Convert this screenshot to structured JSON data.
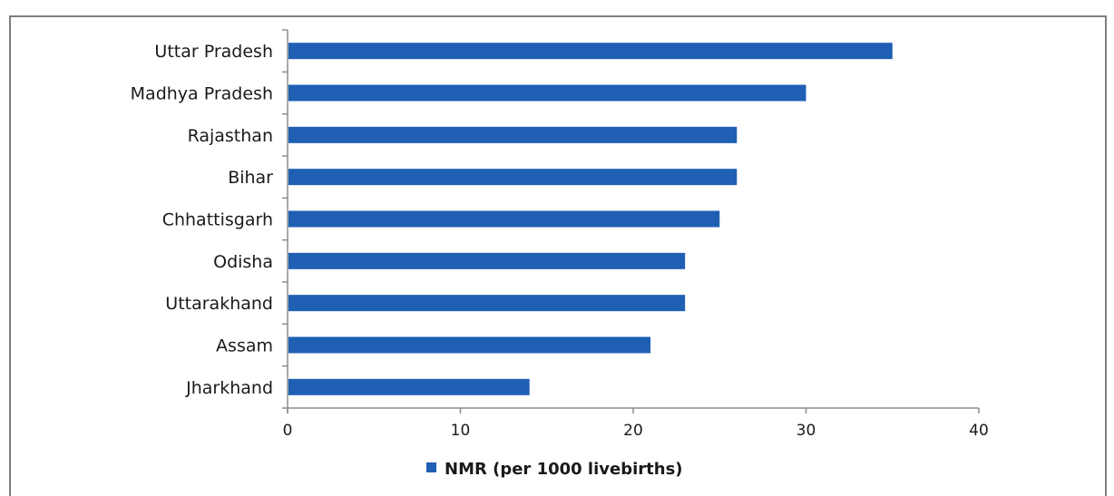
{
  "chart_data": {
    "type": "bar",
    "orientation": "horizontal",
    "categories": [
      "Uttar Pradesh",
      "Madhya Pradesh",
      "Rajasthan",
      "Bihar",
      "Chhattisgarh",
      "Odisha",
      "Uttarakhand",
      "Assam",
      "Jharkhand"
    ],
    "series": [
      {
        "name": "NMR (per 1000 livebirths)",
        "values": [
          35,
          30,
          26,
          26,
          25,
          23,
          23,
          21,
          14
        ]
      }
    ],
    "title": "",
    "xlabel": "",
    "ylabel": "",
    "xlim": [
      0,
      40
    ],
    "xticks": [
      0,
      10,
      20,
      30,
      40
    ],
    "grid": false,
    "legend": "bottom",
    "bar_color": "#1f5fb4"
  }
}
